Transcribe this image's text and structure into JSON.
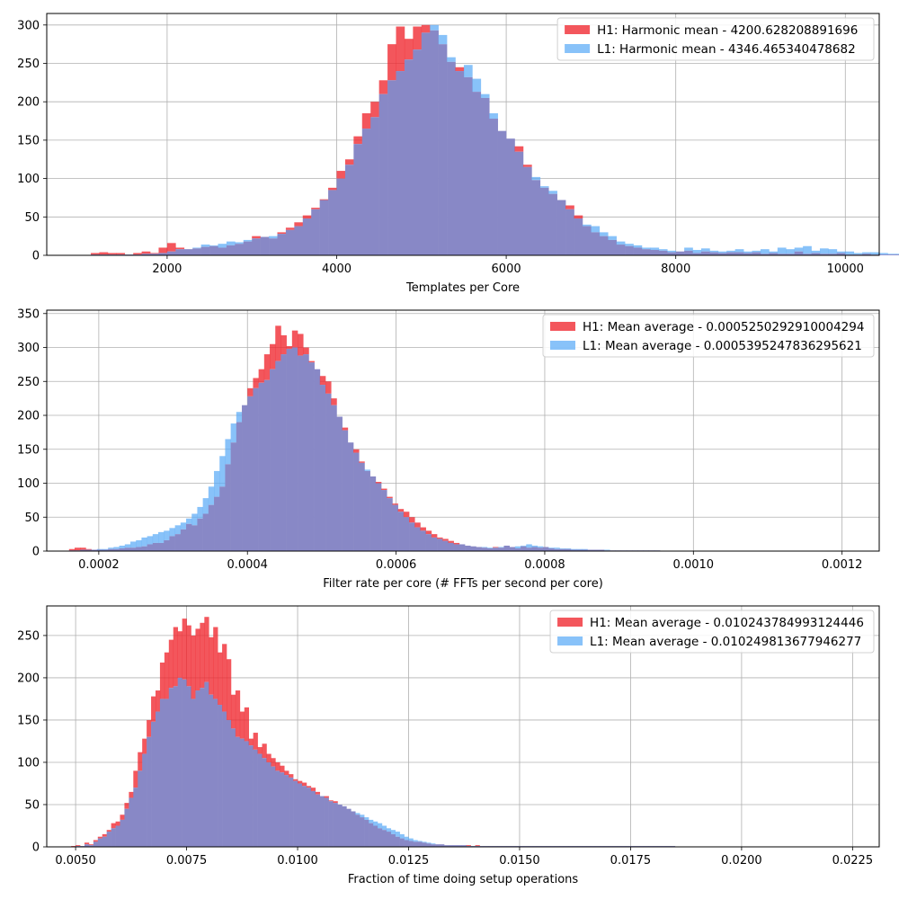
{
  "colors": {
    "h1": "#f0272e",
    "l1": "#5aaaf7",
    "overlap": "#8888c6",
    "grid": "#b0b0b0"
  },
  "chart_data": [
    {
      "type": "histogram",
      "title": "",
      "xlabel": "Templates per Core",
      "ylabel": "",
      "xlim": [
        580,
        10400
      ],
      "ylim": [
        0,
        315
      ],
      "xticks": [
        2000,
        4000,
        6000,
        8000,
        10000
      ],
      "xtick_labels": [
        "2000",
        "4000",
        "6000",
        "8000",
        "10000"
      ],
      "yticks": [
        0,
        50,
        100,
        150,
        200,
        250,
        300
      ],
      "ytick_labels": [
        "0",
        "50",
        "100",
        "150",
        "200",
        "250",
        "300"
      ],
      "grid": true,
      "legend_position": "top-right",
      "bin_start": 1100,
      "bin_width": 100,
      "series": [
        {
          "name": "H1: Harmonic mean  - 4200.628208891696",
          "color": "#f0272e",
          "values": [
            3,
            4,
            3,
            3,
            1,
            3,
            5,
            3,
            10,
            16,
            10,
            8,
            9,
            11,
            12,
            10,
            13,
            15,
            18,
            25,
            24,
            22,
            30,
            36,
            43,
            52,
            62,
            73,
            88,
            110,
            125,
            155,
            185,
            200,
            228,
            275,
            298,
            282,
            298,
            300,
            293,
            275,
            252,
            245,
            232,
            213,
            205,
            178,
            162,
            152,
            142,
            118,
            98,
            88,
            80,
            72,
            65,
            52,
            38,
            30,
            25,
            20,
            14,
            12,
            10,
            8,
            7,
            6,
            4,
            5,
            6,
            3,
            5,
            4,
            3,
            4,
            4,
            3,
            4,
            2,
            3,
            2,
            2,
            5,
            2,
            3,
            2,
            2,
            3,
            1,
            1,
            2,
            1,
            1,
            1,
            1
          ]
        },
        {
          "name": "L1: Harmonic mean  - 4346.465340478682",
          "color": "#5aaaf7",
          "values": [
            1,
            1,
            1,
            1,
            1,
            1,
            2,
            2,
            3,
            5,
            8,
            8,
            10,
            14,
            13,
            15,
            18,
            17,
            20,
            22,
            24,
            25,
            28,
            33,
            38,
            48,
            60,
            72,
            85,
            100,
            118,
            145,
            165,
            180,
            210,
            228,
            240,
            255,
            268,
            290,
            300,
            287,
            258,
            240,
            248,
            230,
            210,
            185,
            162,
            152,
            135,
            115,
            102,
            90,
            84,
            72,
            60,
            48,
            40,
            38,
            30,
            25,
            18,
            15,
            13,
            10,
            10,
            8,
            6,
            5,
            10,
            7,
            9,
            6,
            5,
            6,
            8,
            5,
            6,
            8,
            5,
            10,
            8,
            10,
            12,
            6,
            9,
            8,
            5,
            5,
            3,
            4,
            4,
            3,
            2,
            2
          ]
        }
      ],
      "overlap_color": "#8888c6"
    },
    {
      "type": "histogram",
      "title": "",
      "xlabel": "Filter rate per core (# FFTs per second per core)",
      "ylabel": "",
      "xlim": [
        0.00013,
        0.00125
      ],
      "ylim": [
        0,
        355
      ],
      "xticks": [
        0.0002,
        0.0004,
        0.0006,
        0.0008,
        0.001,
        0.0012
      ],
      "xtick_labels": [
        "0.0002",
        "0.0004",
        "0.0006",
        "0.0008",
        "0.0010",
        "0.0012"
      ],
      "yticks": [
        0,
        50,
        100,
        150,
        200,
        250,
        300,
        350
      ],
      "ytick_labels": [
        "0",
        "50",
        "100",
        "150",
        "200",
        "250",
        "300",
        "350"
      ],
      "grid": true,
      "legend_position": "top-right",
      "bin_start": 0.00016,
      "bin_width": 7.5e-06,
      "series": [
        {
          "name": "H1: Mean average - 0.0005250292910004294",
          "color": "#f0272e",
          "values": [
            3,
            5,
            5,
            3,
            2,
            2,
            2,
            3,
            3,
            4,
            5,
            5,
            6,
            7,
            10,
            12,
            12,
            16,
            22,
            25,
            32,
            40,
            38,
            48,
            55,
            68,
            80,
            95,
            128,
            160,
            190,
            215,
            240,
            255,
            268,
            290,
            305,
            332,
            318,
            302,
            325,
            320,
            300,
            280,
            268,
            258,
            250,
            225,
            198,
            182,
            160,
            150,
            132,
            118,
            110,
            102,
            92,
            80,
            70,
            62,
            58,
            50,
            42,
            35,
            30,
            25,
            20,
            18,
            15,
            12,
            10,
            8,
            7,
            6,
            5,
            4,
            6,
            5,
            8,
            6,
            4,
            7,
            5,
            6,
            5,
            6,
            4,
            3,
            3,
            3,
            2,
            2,
            2,
            2,
            2,
            2,
            1,
            1,
            1,
            1,
            1,
            1,
            1,
            1,
            1,
            1
          ]
        },
        {
          "name": "L1: Mean average - 0.0005395247836295621",
          "color": "#5aaaf7",
          "values": [
            1,
            1,
            2,
            2,
            2,
            3,
            3,
            5,
            6,
            8,
            10,
            14,
            16,
            20,
            22,
            25,
            28,
            30,
            34,
            38,
            42,
            48,
            55,
            65,
            78,
            95,
            118,
            140,
            165,
            188,
            205,
            215,
            228,
            240,
            248,
            252,
            268,
            280,
            290,
            298,
            300,
            288,
            290,
            278,
            268,
            245,
            232,
            215,
            198,
            178,
            160,
            145,
            130,
            120,
            110,
            100,
            90,
            78,
            68,
            58,
            50,
            42,
            35,
            30,
            25,
            20,
            18,
            15,
            12,
            10,
            10,
            8,
            7,
            6,
            6,
            5,
            5,
            6,
            8,
            6,
            7,
            8,
            10,
            8,
            7,
            6,
            5,
            5,
            4,
            4,
            3,
            3,
            3,
            2,
            2,
            2,
            2,
            1,
            1,
            1,
            1,
            1,
            1,
            1,
            1,
            1
          ]
        }
      ],
      "overlap_color": "#8888c6"
    },
    {
      "type": "histogram",
      "title": "",
      "xlabel": "Fraction of time doing setup operations",
      "ylabel": "",
      "xlim": [
        0.00435,
        0.0231
      ],
      "ylim": [
        0,
        285
      ],
      "xticks": [
        0.005,
        0.0075,
        0.01,
        0.0125,
        0.015,
        0.0175,
        0.02,
        0.0225
      ],
      "xtick_labels": [
        "0.0050",
        "0.0075",
        "0.0100",
        "0.0125",
        "0.0150",
        "0.0175",
        "0.0200",
        "0.0225"
      ],
      "yticks": [
        0,
        50,
        100,
        150,
        200,
        250
      ],
      "ytick_labels": [
        "0",
        "50",
        "100",
        "150",
        "200",
        "250"
      ],
      "grid": true,
      "legend_position": "top-right",
      "bin_start": 0.0049,
      "bin_width": 0.0001,
      "series": [
        {
          "name": "H1: Mean average - 0.010243784993124446",
          "color": "#f0272e",
          "values": [
            1,
            2,
            1,
            5,
            3,
            8,
            12,
            15,
            20,
            28,
            30,
            38,
            52,
            65,
            90,
            112,
            128,
            150,
            178,
            185,
            218,
            230,
            245,
            260,
            255,
            270,
            262,
            250,
            258,
            265,
            272,
            248,
            260,
            230,
            240,
            222,
            180,
            185,
            160,
            165,
            128,
            135,
            118,
            122,
            110,
            105,
            100,
            96,
            90,
            86,
            80,
            78,
            76,
            72,
            70,
            65,
            60,
            60,
            55,
            54,
            50,
            48,
            45,
            42,
            38,
            35,
            32,
            28,
            25,
            22,
            20,
            18,
            15,
            12,
            10,
            8,
            7,
            6,
            6,
            5,
            4,
            3,
            3,
            3,
            2,
            2,
            2,
            2,
            2,
            2,
            1,
            2,
            1,
            1,
            1,
            1,
            1,
            1,
            1,
            1,
            1,
            1,
            1,
            1,
            1,
            1,
            1,
            1,
            1,
            1,
            1,
            1,
            1,
            1,
            1,
            1,
            1,
            1,
            1,
            1,
            1,
            1,
            1,
            1,
            1,
            1,
            1,
            1,
            1,
            1,
            1,
            1,
            1,
            1,
            1,
            1
          ]
        },
        {
          "name": "L1: Mean average - 0.010249813677946277",
          "color": "#5aaaf7",
          "values": [
            0,
            1,
            1,
            3,
            2,
            6,
            10,
            12,
            18,
            22,
            25,
            32,
            45,
            58,
            70,
            90,
            110,
            130,
            148,
            160,
            175,
            175,
            188,
            190,
            200,
            198,
            190,
            175,
            185,
            188,
            195,
            180,
            175,
            168,
            160,
            150,
            140,
            130,
            128,
            125,
            120,
            115,
            110,
            105,
            100,
            95,
            90,
            88,
            85,
            82,
            78,
            75,
            72,
            70,
            66,
            62,
            60,
            58,
            54,
            52,
            50,
            48,
            45,
            42,
            40,
            38,
            35,
            32,
            30,
            28,
            25,
            22,
            20,
            18,
            15,
            12,
            10,
            8,
            7,
            6,
            5,
            4,
            3,
            3,
            2,
            2,
            2,
            2,
            2,
            1,
            1,
            1,
            1,
            1,
            1,
            1,
            1,
            1,
            1,
            1,
            1,
            1,
            1,
            1,
            1,
            1,
            1,
            1,
            1,
            1,
            1,
            1,
            1,
            1,
            1,
            1,
            1,
            1,
            1,
            1,
            1,
            1,
            1,
            1,
            1,
            1,
            1,
            1,
            1,
            1,
            1,
            1,
            1,
            1,
            1,
            1
          ]
        }
      ],
      "overlap_color": "#8888c6"
    }
  ]
}
